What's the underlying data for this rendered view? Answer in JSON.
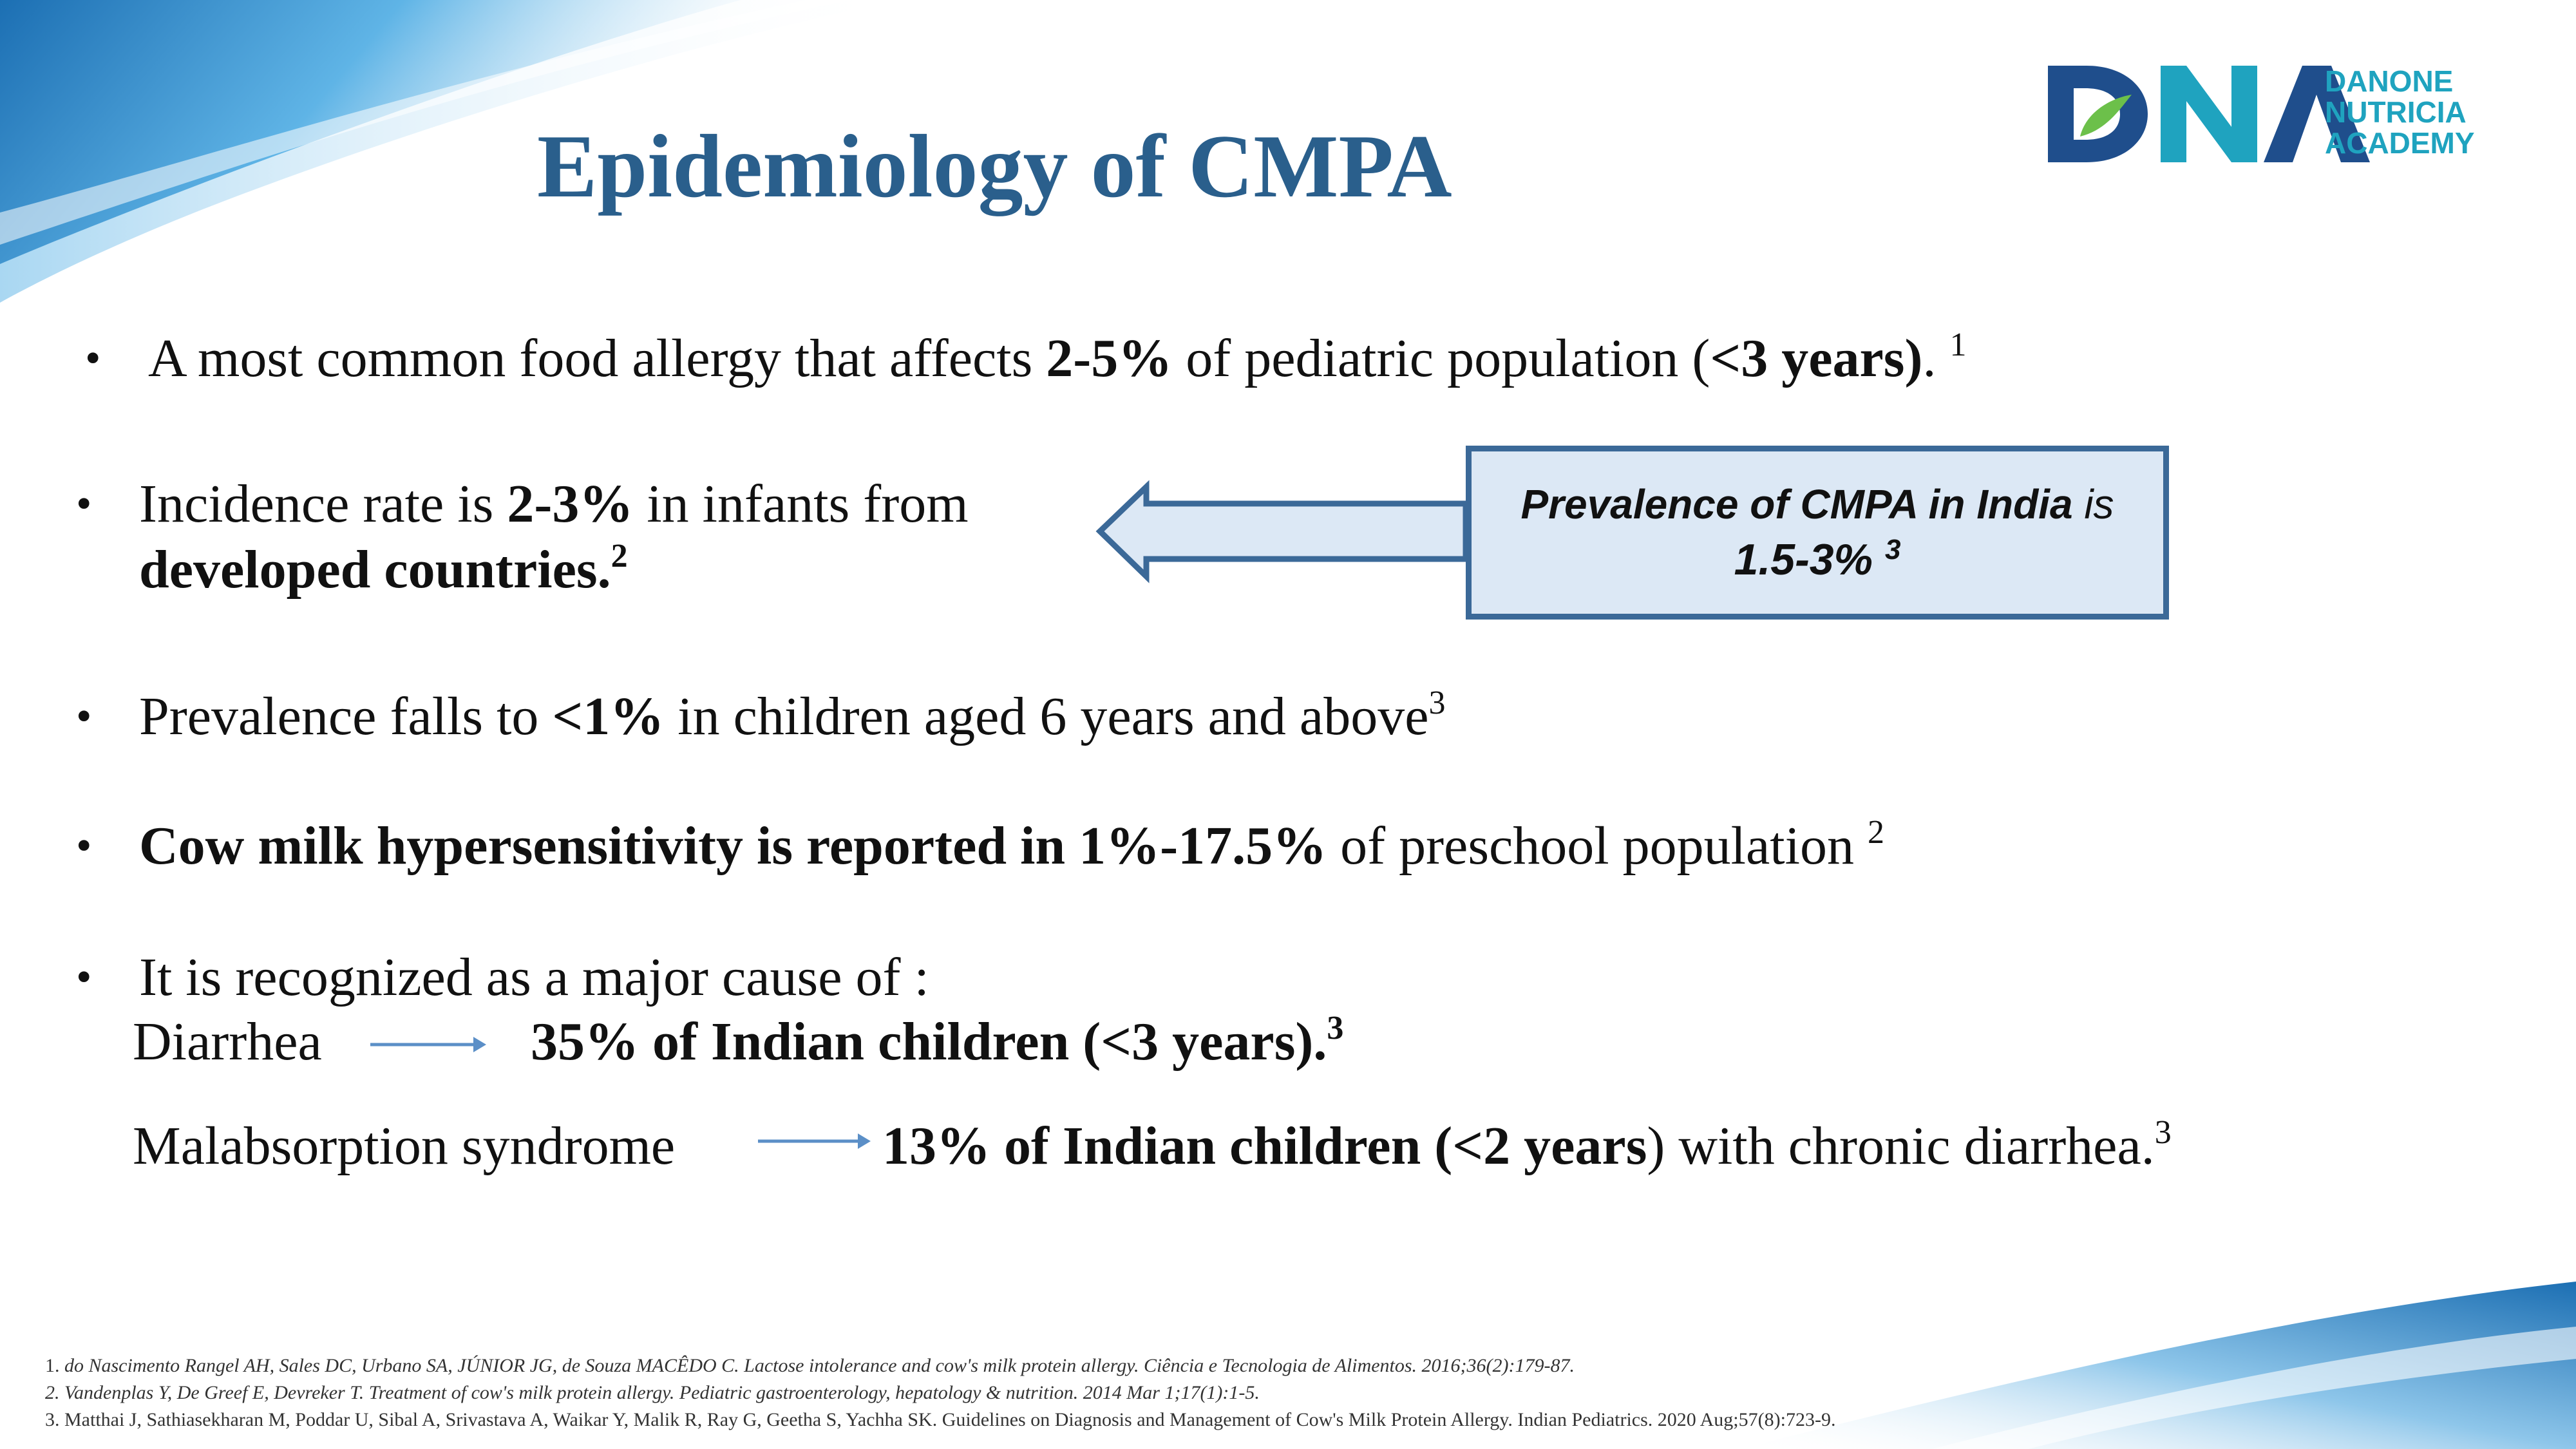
{
  "slide": {
    "title": "Epidemiology of CMPA",
    "logo": {
      "mark": "DNA",
      "lines": [
        "DANONE",
        "NUTRICIA",
        "ACADEMY"
      ],
      "colors": {
        "dark": "#1f4e8c",
        "teal": "#1fa3bf"
      }
    },
    "colors": {
      "title": "#2a5f8c",
      "callout_border": "#3b6998",
      "callout_fill": "#dce8f5",
      "arrow": "#5b8fc7"
    }
  },
  "bullets": {
    "b1": {
      "pre": "A most common food allergy that affects ",
      "bold1": "2-5%",
      "mid": " of pediatric population (",
      "bold2": "<3 years)",
      "post": ". ",
      "ref": "1"
    },
    "b2": {
      "pre": "Incidence rate is ",
      "bold1": "2-3%",
      "post": " in infants from",
      "line2": "developed countries.",
      "ref": "2"
    },
    "b3": {
      "pre": "Prevalence falls to ",
      "bold1": "<1%",
      "post": " in children aged 6 years and above",
      "ref": "3"
    },
    "b4": {
      "bold1": "Cow milk hypersensitivity is reported in 1%-17.5%",
      "post": " of preschool population ",
      "ref": "2"
    },
    "b5": {
      "text": "It is recognized as a major cause of :",
      "item1": {
        "label": "Diarrhea",
        "bold": "35% of Indian children (<3 years).",
        "ref": "3"
      },
      "item2": {
        "label": "Malabsorption syndrome",
        "bold1": "13% of Indian children (<2 years",
        "post": ") with chronic diarrhea.",
        "ref": "3"
      }
    }
  },
  "callout": {
    "line1_bold": "Prevalence of CMPA in India",
    "line1_rest": " is",
    "line2": "1.5-3%",
    "ref": "3"
  },
  "references": [
    {
      "num": "1.",
      "text": "do Nascimento Rangel AH, Sales DC, Urbano SA, JÚNIOR JG, de Souza MACÊDO C. Lactose intolerance and cow's milk protein allergy. Ciência e Tecnologia de Alimentos. 2016;36(2):179-87."
    },
    {
      "num": "2.",
      "text": "Vandenplas Y, De Greef E, Devreker T. Treatment of cow's milk protein allergy. Pediatric gastroenterology, hepatology & nutrition. 2014 Mar 1;17(1):1-5."
    },
    {
      "num": "3.",
      "text": "Matthai J, Sathiasekharan M, Poddar U, Sibal A, Srivastava A, Waikar Y, Malik R, Ray G, Geetha S, Yachha SK. Guidelines on Diagnosis and Management of Cow's Milk Protein Allergy. Indian Pediatrics. 2020 Aug;57(8):723-9."
    }
  ]
}
